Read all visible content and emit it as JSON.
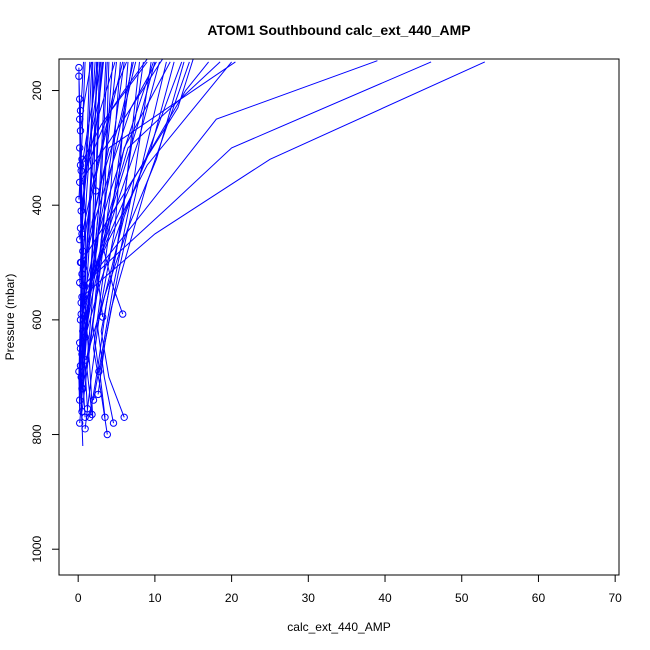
{
  "chart_data": {
    "type": "scatter",
    "title": "ATOM1 Southbound calc_ext_440_AMP",
    "xlabel": "calc_ext_440_AMP",
    "ylabel": "Pressure (mbar)",
    "xlim": [
      -2.5,
      70.5
    ],
    "ylim": [
      1045,
      145
    ],
    "y_reversed": true,
    "grid": false,
    "x_ticks": [
      0,
      10,
      20,
      30,
      40,
      50,
      60,
      70
    ],
    "y_ticks": [
      200,
      400,
      600,
      800,
      1000
    ],
    "x_tick_labels": [
      "0",
      "10",
      "20",
      "30",
      "40",
      "50",
      "60",
      "70"
    ],
    "y_tick_labels": [
      "200",
      "400",
      "600",
      "800",
      "1000"
    ],
    "line_color": "#0000ff",
    "marker": "open-circle",
    "profiles": [
      [
        [
          0.1,
          160
        ],
        [
          0.2,
          260
        ],
        [
          0.3,
          380
        ],
        [
          0.4,
          520
        ],
        [
          0.2,
          640
        ],
        [
          0.1,
          700
        ],
        [
          0.2,
          760
        ]
      ],
      [
        [
          0.1,
          175
        ],
        [
          0.3,
          300
        ],
        [
          0.5,
          420
        ],
        [
          0.4,
          560
        ],
        [
          0.3,
          690
        ],
        [
          0.5,
          780
        ]
      ],
      [
        [
          0.2,
          215
        ],
        [
          0.4,
          330
        ],
        [
          0.6,
          470
        ],
        [
          0.3,
          600
        ],
        [
          0.2,
          720
        ]
      ],
      [
        [
          0.3,
          235
        ],
        [
          0.2,
          350
        ],
        [
          0.5,
          500
        ],
        [
          0.6,
          620
        ],
        [
          0.4,
          740
        ],
        [
          0.6,
          820
        ]
      ],
      [
        [
          0.2,
          300
        ],
        [
          0.5,
          420
        ],
        [
          0.7,
          540
        ],
        [
          0.4,
          660
        ],
        [
          0.2,
          750
        ]
      ],
      [
        [
          0.5,
          320
        ],
        [
          1.0,
          430
        ],
        [
          0.8,
          560
        ],
        [
          1.5,
          680
        ],
        [
          1.9,
          770
        ]
      ],
      [
        [
          0.3,
          330
        ],
        [
          3.0,
          260
        ],
        [
          6.0,
          200
        ],
        [
          9.0,
          145
        ]
      ],
      [
        [
          0.2,
          360
        ],
        [
          4.0,
          290
        ],
        [
          11.0,
          145
        ]
      ],
      [
        [
          0.4,
          500
        ],
        [
          6.0,
          380
        ],
        [
          13.0,
          230
        ],
        [
          15.0,
          145
        ]
      ],
      [
        [
          0.6,
          540
        ],
        [
          12.0,
          400
        ],
        [
          20.0,
          300
        ],
        [
          46.0,
          150
        ]
      ],
      [
        [
          0.5,
          560
        ],
        [
          10.0,
          450
        ],
        [
          25.0,
          320
        ],
        [
          53.0,
          150
        ]
      ],
      [
        [
          0.8,
          540
        ],
        [
          8.0,
          420
        ],
        [
          18.0,
          250
        ],
        [
          39.0,
          148
        ]
      ],
      [
        [
          0.4,
          570
        ],
        [
          4.0,
          460
        ],
        [
          9.0,
          330
        ],
        [
          20.0,
          150
        ]
      ],
      [
        [
          0.3,
          600
        ],
        [
          2.5,
          500
        ],
        [
          7.0,
          360
        ],
        [
          14.0,
          200
        ],
        [
          17.0,
          150
        ]
      ],
      [
        [
          0.6,
          620
        ],
        [
          2.0,
          520
        ],
        [
          5.0,
          380
        ],
        [
          8.0,
          250
        ],
        [
          10.0,
          150
        ]
      ],
      [
        [
          0.2,
          640
        ],
        [
          1.5,
          540
        ],
        [
          3.0,
          420
        ],
        [
          5.5,
          260
        ],
        [
          7.5,
          150
        ]
      ],
      [
        [
          0.5,
          660
        ],
        [
          1.8,
          560
        ],
        [
          4.0,
          430
        ],
        [
          6.0,
          300
        ],
        [
          12.0,
          150
        ]
      ],
      [
        [
          0.3,
          680
        ],
        [
          1.2,
          580
        ],
        [
          2.5,
          470
        ],
        [
          3.5,
          330
        ],
        [
          4.5,
          150
        ]
      ],
      [
        [
          0.4,
          700
        ],
        [
          1.0,
          610
        ],
        [
          2.0,
          500
        ],
        [
          3.0,
          360
        ],
        [
          3.8,
          150
        ]
      ],
      [
        [
          0.6,
          720
        ],
        [
          1.5,
          640
        ],
        [
          2.8,
          520
        ],
        [
          4.2,
          380
        ],
        [
          5.5,
          150
        ]
      ],
      [
        [
          0.2,
          740
        ],
        [
          0.8,
          650
        ],
        [
          1.5,
          540
        ],
        [
          2.2,
          400
        ],
        [
          2.8,
          150
        ]
      ],
      [
        [
          0.5,
          760
        ],
        [
          1.3,
          670
        ],
        [
          2.4,
          560
        ],
        [
          3.4,
          420
        ],
        [
          4.0,
          150
        ]
      ],
      [
        [
          0.9,
          790
        ],
        [
          1.8,
          690
        ],
        [
          2.9,
          580
        ],
        [
          4.8,
          440
        ],
        [
          6.5,
          150
        ]
      ],
      [
        [
          1.5,
          770
        ],
        [
          2.6,
          680
        ],
        [
          3.7,
          570
        ],
        [
          5.8,
          420
        ],
        [
          8.0,
          150
        ]
      ],
      [
        [
          2.0,
          740
        ],
        [
          3.2,
          650
        ],
        [
          4.6,
          540
        ],
        [
          7.0,
          380
        ],
        [
          9.5,
          150
        ]
      ],
      [
        [
          2.6,
          730
        ],
        [
          3.5,
          640
        ],
        [
          5.2,
          520
        ],
        [
          8.5,
          320
        ],
        [
          11.5,
          150
        ]
      ],
      [
        [
          3.5,
          770
        ],
        [
          2.8,
          690
        ],
        [
          4.3,
          580
        ],
        [
          9.0,
          360
        ],
        [
          14.5,
          150
        ]
      ],
      [
        [
          4.6,
          780
        ],
        [
          3.4,
          700
        ],
        [
          2.5,
          610
        ],
        [
          6.0,
          420
        ],
        [
          13.5,
          150
        ]
      ],
      [
        [
          6.0,
          770
        ],
        [
          4.0,
          700
        ],
        [
          3.0,
          620
        ],
        [
          5.0,
          480
        ],
        [
          8.5,
          150
        ]
      ],
      [
        [
          3.8,
          800
        ],
        [
          2.9,
          720
        ],
        [
          2.0,
          650
        ],
        [
          3.5,
          500
        ],
        [
          7.0,
          150
        ]
      ],
      [
        [
          5.8,
          590
        ],
        [
          4.5,
          540
        ],
        [
          3.0,
          460
        ],
        [
          6.5,
          300
        ],
        [
          18.5,
          150
        ]
      ],
      [
        [
          3.2,
          595
        ],
        [
          2.5,
          520
        ],
        [
          1.8,
          430
        ],
        [
          4.0,
          300
        ],
        [
          20.5,
          150
        ]
      ],
      [
        [
          2.3,
          375
        ],
        [
          1.5,
          320
        ],
        [
          4.0,
          240
        ],
        [
          9.0,
          150
        ]
      ],
      [
        [
          0.3,
          500
        ],
        [
          0.6,
          420
        ],
        [
          1.0,
          340
        ],
        [
          1.4,
          260
        ],
        [
          1.8,
          150
        ]
      ],
      [
        [
          0.2,
          535
        ],
        [
          0.5,
          450
        ],
        [
          0.8,
          360
        ],
        [
          1.2,
          270
        ],
        [
          1.5,
          150
        ]
      ],
      [
        [
          0.4,
          590
        ],
        [
          0.7,
          480
        ],
        [
          1.1,
          380
        ],
        [
          1.6,
          280
        ],
        [
          2.2,
          150
        ]
      ],
      [
        [
          0.3,
          650
        ],
        [
          0.9,
          540
        ],
        [
          1.4,
          430
        ],
        [
          2.0,
          300
        ],
        [
          2.6,
          150
        ]
      ],
      [
        [
          0.1,
          690
        ],
        [
          0.6,
          600
        ],
        [
          1.0,
          500
        ],
        [
          1.6,
          360
        ],
        [
          3.2,
          150
        ]
      ],
      [
        [
          0.5,
          720
        ],
        [
          1.1,
          620
        ],
        [
          1.9,
          520
        ],
        [
          2.7,
          400
        ],
        [
          3.6,
          150
        ]
      ],
      [
        [
          0.2,
          780
        ],
        [
          0.7,
          700
        ],
        [
          1.2,
          610
        ],
        [
          1.8,
          500
        ],
        [
          2.4,
          150
        ]
      ],
      [
        [
          0.9,
          770
        ],
        [
          0.5,
          680
        ],
        [
          0.9,
          580
        ],
        [
          1.5,
          460
        ],
        [
          1.9,
          150
        ]
      ],
      [
        [
          1.2,
          755
        ],
        [
          0.8,
          660
        ],
        [
          1.4,
          560
        ],
        [
          2.1,
          440
        ],
        [
          3.0,
          150
        ]
      ],
      [
        [
          1.8,
          765
        ],
        [
          1.1,
          680
        ],
        [
          1.7,
          590
        ],
        [
          2.4,
          470
        ],
        [
          5.0,
          150
        ]
      ],
      [
        [
          2.7,
          690
        ],
        [
          1.9,
          610
        ],
        [
          2.6,
          510
        ],
        [
          3.9,
          350
        ],
        [
          6.0,
          150
        ]
      ],
      [
        [
          0.4,
          410
        ],
        [
          1.2,
          330
        ],
        [
          2.5,
          250
        ],
        [
          4.8,
          150
        ]
      ],
      [
        [
          0.3,
          440
        ],
        [
          0.9,
          360
        ],
        [
          1.6,
          280
        ],
        [
          2.8,
          210
        ],
        [
          3.3,
          150
        ]
      ],
      [
        [
          0.2,
          460
        ],
        [
          0.8,
          380
        ],
        [
          1.4,
          300
        ],
        [
          2.2,
          220
        ],
        [
          2.9,
          150
        ]
      ],
      [
        [
          0.6,
          480
        ],
        [
          1.5,
          400
        ],
        [
          2.8,
          320
        ],
        [
          4.2,
          240
        ],
        [
          5.8,
          150
        ]
      ],
      [
        [
          0.5,
          520
        ],
        [
          1.7,
          440
        ],
        [
          3.2,
          350
        ],
        [
          5.5,
          250
        ],
        [
          7.2,
          150
        ]
      ],
      [
        [
          0.7,
          560
        ],
        [
          2.2,
          470
        ],
        [
          4.1,
          380
        ],
        [
          6.8,
          270
        ],
        [
          9.8,
          150
        ]
      ],
      [
        [
          0.8,
          600
        ],
        [
          2.6,
          500
        ],
        [
          5.0,
          400
        ],
        [
          7.8,
          290
        ],
        [
          10.6,
          150
        ]
      ],
      [
        [
          0.9,
          630
        ],
        [
          3.0,
          530
        ],
        [
          5.8,
          420
        ],
        [
          9.5,
          300
        ],
        [
          12.5,
          150
        ]
      ],
      [
        [
          1.0,
          670
        ],
        [
          3.4,
          560
        ],
        [
          6.5,
          440
        ],
        [
          10.2,
          320
        ],
        [
          13.8,
          150
        ]
      ],
      [
        [
          0.3,
          270
        ],
        [
          0.8,
          220
        ],
        [
          1.3,
          180
        ],
        [
          1.7,
          150
        ]
      ],
      [
        [
          0.2,
          250
        ],
        [
          0.5,
          200
        ],
        [
          0.7,
          150
        ]
      ],
      [
        [
          0.4,
          340
        ],
        [
          1.1,
          280
        ],
        [
          1.9,
          220
        ],
        [
          2.5,
          150
        ]
      ],
      [
        [
          0.1,
          390
        ],
        [
          0.4,
          320
        ],
        [
          0.6,
          250
        ],
        [
          0.9,
          150
        ]
      ],
      [
        [
          0.5,
          450
        ],
        [
          1.8,
          370
        ],
        [
          3.2,
          290
        ],
        [
          4.5,
          210
        ],
        [
          6.3,
          150
        ]
      ],
      [
        [
          0.7,
          510
        ],
        [
          2.3,
          420
        ],
        [
          4.4,
          330
        ],
        [
          6.9,
          230
        ],
        [
          10.2,
          150
        ]
      ]
    ]
  }
}
